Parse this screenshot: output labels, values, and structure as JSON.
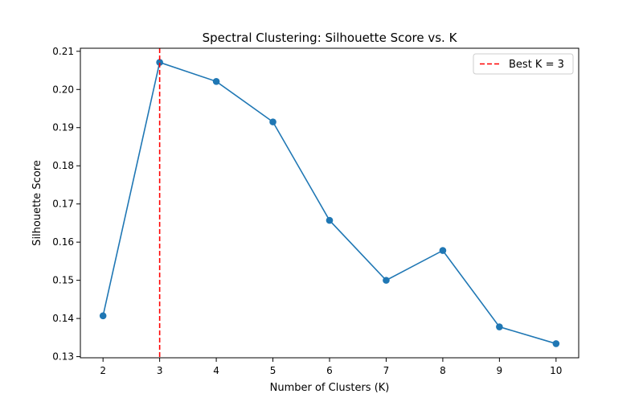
{
  "chart_data": {
    "type": "line",
    "title": "Spectral Clustering: Silhouette Score vs. K",
    "xlabel": "Number of Clusters (K)",
    "ylabel": "Silhouette Score",
    "x": [
      2,
      3,
      4,
      5,
      6,
      7,
      8,
      9,
      10
    ],
    "xticks": [
      "2",
      "3",
      "4",
      "5",
      "6",
      "7",
      "8",
      "9",
      "10"
    ],
    "yticks": [
      "0.13",
      "0.14",
      "0.15",
      "0.16",
      "0.17",
      "0.18",
      "0.19",
      "0.20",
      "0.21"
    ],
    "xlim": [
      1.6,
      10.4
    ],
    "ylim": [
      0.1297,
      0.2108
    ],
    "grid": false,
    "legend_position": "top-right",
    "series": [
      {
        "values": [
          0.1407,
          0.2071,
          0.2021,
          0.1915,
          0.1657,
          0.15,
          0.1578,
          0.1378,
          0.1334
        ],
        "color": "#1f77b4",
        "marker": "circle"
      }
    ],
    "reference_line": {
      "orientation": "vertical",
      "x": 3,
      "label": "Best K = 3",
      "color": "#ff0000",
      "style": "dashed"
    }
  }
}
